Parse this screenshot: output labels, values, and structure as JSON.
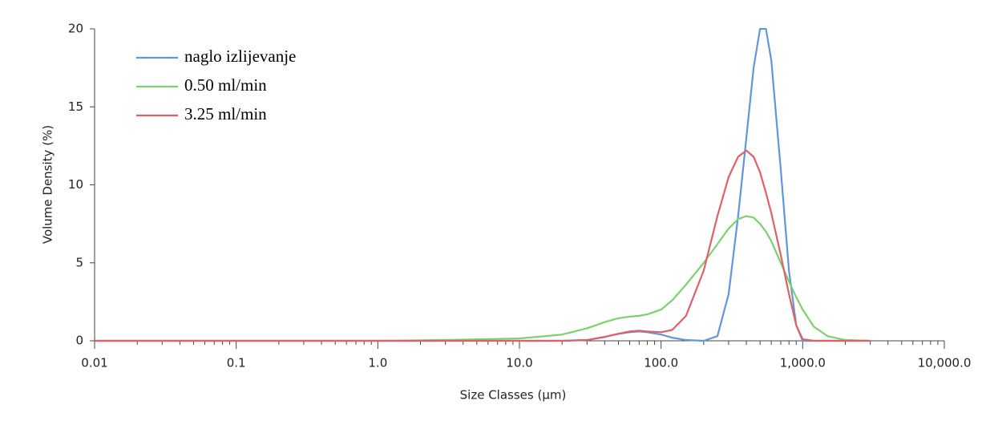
{
  "chart_data": {
    "type": "line",
    "x_label": "Size Classes (µm)",
    "y_label": "Volume Density (%)",
    "log_x": true,
    "legend": "top-left",
    "xlim": [
      0.01,
      10000
    ],
    "ylim": [
      0,
      20
    ],
    "xticks": [
      0.01,
      0.1,
      {
        "value": 1,
        "label": "1.0"
      },
      {
        "value": 10,
        "label": "10.0"
      },
      {
        "value": 100,
        "label": "100.0"
      },
      {
        "value": 1000,
        "label": "1,000.0"
      },
      {
        "value": 10000,
        "label": "10,000.0"
      }
    ],
    "yticks": [
      0,
      5,
      10,
      15,
      20
    ],
    "x": [
      0.01,
      0.1,
      1,
      3,
      10,
      20,
      30,
      40,
      50,
      60,
      70,
      80,
      100,
      120,
      150,
      200,
      250,
      300,
      350,
      400,
      450,
      500,
      550,
      600,
      700,
      800,
      900,
      1000,
      1200,
      1500,
      2000,
      3000
    ],
    "series": [
      {
        "name": "naglo izlijevanje",
        "color": "#5f96dc",
        "values": [
          0,
          0,
          0,
          0,
          0,
          0,
          0.05,
          0.25,
          0.45,
          0.55,
          0.6,
          0.55,
          0.4,
          0.2,
          0.05,
          0,
          0.3,
          3,
          8,
          13,
          17.5,
          20,
          20,
          18,
          11,
          4.5,
          1,
          0,
          0,
          0,
          0,
          0
        ]
      },
      {
        "name": "0.50 ml/min",
        "color": "#7ad36a",
        "values": [
          0,
          0,
          0,
          0.05,
          0.15,
          0.4,
          0.8,
          1.2,
          1.45,
          1.55,
          1.6,
          1.7,
          2,
          2.6,
          3.6,
          5,
          6.2,
          7.2,
          7.8,
          8,
          7.9,
          7.5,
          7,
          6.4,
          5,
          3.8,
          2.8,
          2,
          0.9,
          0.3,
          0.05,
          0
        ]
      },
      {
        "name": "3.25 ml/min",
        "color": "#e06068",
        "values": [
          0,
          0,
          0,
          0,
          0,
          0,
          0.05,
          0.25,
          0.45,
          0.6,
          0.65,
          0.6,
          0.55,
          0.7,
          1.6,
          4.5,
          8,
          10.5,
          11.8,
          12.2,
          11.8,
          10.8,
          9.5,
          8.2,
          5.5,
          3,
          1,
          0.1,
          0,
          0,
          0,
          0
        ]
      }
    ]
  }
}
